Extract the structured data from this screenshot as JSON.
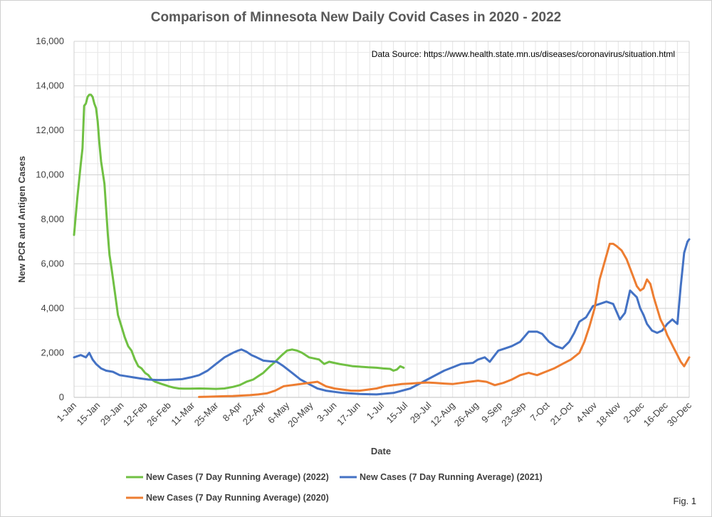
{
  "title": "Comparison of Minnesota New Daily Covid Cases in 2020 - 2022",
  "fig_label": "Fig. 1",
  "source_note": "Data Source: https://www.health.state.mn.us/diseases/coronavirus/situation.html",
  "chart_data": {
    "type": "line",
    "title": "Comparison of Minnesota New Daily Covid Cases in 2020 - 2022",
    "xlabel": "Date",
    "ylabel": "New PCR and Antigen Cases",
    "xlim": [
      1,
      365
    ],
    "ylim": [
      0,
      16000
    ],
    "grid": true,
    "legend_position": "bottom",
    "y_ticks": [
      0,
      2000,
      4000,
      6000,
      8000,
      10000,
      12000,
      14000,
      16000
    ],
    "y_tick_labels": [
      "0",
      "2,000",
      "4,000",
      "6,000",
      "8,000",
      "10,000",
      "12,000",
      "14,000",
      "16,000"
    ],
    "x_ticks": [
      1,
      15,
      29,
      43,
      57,
      71,
      85,
      99,
      113,
      127,
      141,
      155,
      169,
      183,
      197,
      211,
      225,
      239,
      253,
      267,
      281,
      295,
      309,
      323,
      337,
      351,
      365
    ],
    "x_tick_labels": [
      "1-Jan",
      "15-Jan",
      "29-Jan",
      "12-Feb",
      "26-Feb",
      "11-Mar",
      "25-Mar",
      "8-Apr",
      "22-Apr",
      "6-May",
      "20-May",
      "3-Jun",
      "17-Jun",
      "1-Jul",
      "15-Jul",
      "29-Jul",
      "12-Aug",
      "26-Aug",
      "9-Sep",
      "23-Sep",
      "7-Oct",
      "21-Oct",
      "4-Nov",
      "18-Nov",
      "2-Dec",
      "16-Dec",
      "30-Dec"
    ],
    "series": [
      {
        "name": "New Cases (7 Day Running Average) (2022)",
        "color": "#70c043",
        "x": [
          1,
          3,
          5,
          6,
          7,
          8,
          9,
          10,
          11,
          12,
          13,
          14,
          15,
          16,
          17,
          19,
          21,
          22,
          23,
          25,
          27,
          29,
          31,
          33,
          35,
          37,
          39,
          41,
          43,
          45,
          47,
          49,
          51,
          53,
          55,
          57,
          60,
          63,
          66,
          70,
          75,
          80,
          85,
          90,
          95,
          99,
          103,
          107,
          110,
          113,
          117,
          120,
          124,
          127,
          130,
          133,
          136,
          140,
          143,
          146,
          149,
          152,
          155,
          158,
          162,
          166,
          170,
          175,
          180,
          184,
          188,
          190,
          192,
          194,
          196
        ],
        "y": [
          7300,
          9000,
          10500,
          11200,
          13100,
          13200,
          13500,
          13600,
          13600,
          13500,
          13200,
          13000,
          12400,
          11400,
          10600,
          9600,
          7300,
          6400,
          5900,
          4800,
          3700,
          3200,
          2700,
          2300,
          2100,
          1700,
          1400,
          1300,
          1100,
          1000,
          800,
          700,
          650,
          600,
          550,
          500,
          440,
          400,
          390,
          390,
          400,
          390,
          380,
          400,
          470,
          550,
          700,
          800,
          950,
          1100,
          1400,
          1600,
          1900,
          2100,
          2150,
          2100,
          2000,
          1800,
          1750,
          1700,
          1500,
          1600,
          1550,
          1500,
          1450,
          1400,
          1380,
          1350,
          1330,
          1300,
          1280,
          1200,
          1250,
          1400,
          1330
        ]
      },
      {
        "name": "New Cases (7 Day Running Average)  (2021)",
        "color": "#4472c4",
        "x": [
          1,
          5,
          8,
          10,
          12,
          14,
          17,
          20,
          24,
          28,
          32,
          36,
          40,
          45,
          50,
          55,
          60,
          65,
          70,
          75,
          80,
          85,
          90,
          95,
          98,
          100,
          103,
          106,
          109,
          113,
          117,
          121,
          125,
          130,
          135,
          140,
          145,
          150,
          160,
          170,
          180,
          190,
          200,
          210,
          220,
          230,
          237,
          240,
          244,
          247,
          250,
          252,
          256,
          260,
          265,
          270,
          275,
          278,
          282,
          286,
          290,
          294,
          297,
          300,
          304,
          308,
          312,
          316,
          320,
          324,
          327,
          330,
          334,
          336,
          338,
          340,
          343,
          346,
          349,
          352,
          355,
          358,
          360,
          362,
          364,
          365
        ],
        "y": [
          1800,
          1900,
          1800,
          2000,
          1700,
          1500,
          1300,
          1200,
          1150,
          1000,
          950,
          900,
          850,
          800,
          780,
          780,
          800,
          820,
          900,
          1000,
          1200,
          1500,
          1800,
          2000,
          2100,
          2150,
          2050,
          1900,
          1800,
          1650,
          1620,
          1600,
          1400,
          1100,
          800,
          600,
          400,
          300,
          200,
          150,
          130,
          200,
          400,
          800,
          1200,
          1500,
          1550,
          1700,
          1800,
          1600,
          1900,
          2100,
          2200,
          2300,
          2500,
          2950,
          2950,
          2850,
          2500,
          2300,
          2200,
          2500,
          2900,
          3400,
          3600,
          4100,
          4200,
          4300,
          4200,
          3500,
          3800,
          4800,
          4500,
          4000,
          3700,
          3300,
          3000,
          2900,
          3000,
          3300,
          3500,
          3300,
          5000,
          6500,
          7000,
          7100
        ]
      },
      {
        "name": "New Cases (7 Day Running Average)  (2020)",
        "color": "#ed7d31",
        "x": [
          75,
          80,
          85,
          90,
          95,
          100,
          105,
          110,
          115,
          120,
          125,
          130,
          135,
          140,
          145,
          150,
          155,
          160,
          165,
          170,
          175,
          180,
          185,
          190,
          195,
          200,
          205,
          210,
          215,
          220,
          225,
          230,
          235,
          240,
          245,
          250,
          255,
          260,
          265,
          270,
          275,
          280,
          285,
          290,
          295,
          300,
          303,
          306,
          309,
          312,
          315,
          318,
          320,
          322,
          325,
          328,
          331,
          334,
          336,
          338,
          340,
          342,
          344,
          346,
          348,
          350,
          352,
          354,
          356,
          358,
          360,
          362,
          365
        ],
        "y": [
          20,
          30,
          40,
          50,
          60,
          80,
          100,
          130,
          180,
          300,
          500,
          550,
          600,
          650,
          700,
          500,
          400,
          350,
          300,
          300,
          350,
          400,
          500,
          550,
          600,
          620,
          650,
          670,
          650,
          620,
          600,
          650,
          700,
          750,
          700,
          550,
          650,
          800,
          1000,
          1100,
          1000,
          1150,
          1300,
          1500,
          1700,
          2000,
          2500,
          3200,
          4000,
          5300,
          6100,
          6900,
          6900,
          6800,
          6600,
          6200,
          5600,
          5000,
          4800,
          4900,
          5300,
          5100,
          4500,
          4000,
          3500,
          3200,
          2800,
          2500,
          2200,
          1900,
          1600,
          1400,
          1800
        ]
      }
    ]
  }
}
